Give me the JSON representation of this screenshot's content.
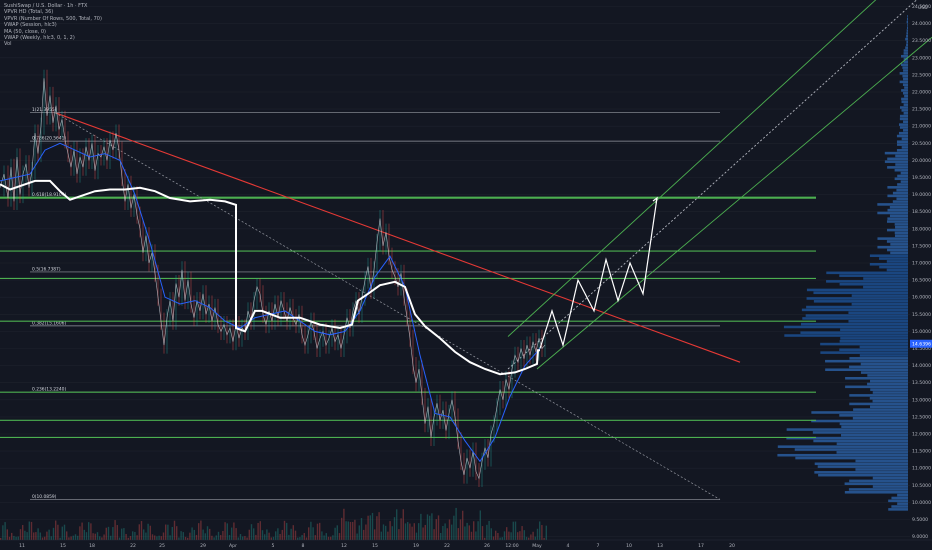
{
  "legend": [
    "SushiSwap / U.S. Dollar · 1h · FTX",
    "VPVR HD (Total, 36)",
    "VPVR (Number Of Rows, 500, Total, 70)",
    "VWAP (Session, hlc3)",
    "MA (50, close, 0)",
    "VWAP (Weekly, hlc3, 0, 1, 2)",
    "Vol"
  ],
  "axis": {
    "currency": "USD",
    "price_ticks": [
      "24.5000",
      "24.0000",
      "23.5000",
      "23.0000",
      "22.5000",
      "22.0000",
      "21.5000",
      "21.0000",
      "20.5000",
      "20.0000",
      "19.5000",
      "19.0000",
      "18.5000",
      "18.0000",
      "17.5000",
      "17.0000",
      "16.5000",
      "16.0000",
      "15.5000",
      "15.0000",
      "14.5000",
      "14.0000",
      "13.5000",
      "13.0000",
      "12.5000",
      "12.0000",
      "11.5000",
      "11.0000",
      "10.5000",
      "10.0000",
      "9.5000",
      "9.0000"
    ],
    "current_price": "14.6396",
    "time_ticks": [
      "11",
      "15",
      "18",
      "22",
      "25",
      "29",
      "Apr",
      "5",
      "8",
      "12",
      "15",
      "19",
      "22",
      "26",
      "12:00",
      "May",
      "4",
      "7",
      "10",
      "13",
      "17",
      "20"
    ]
  },
  "fib_levels": [
    {
      "label": "1(21.3955)",
      "price": 21.3955
    },
    {
      "label": "0.786(20.5641)",
      "price": 20.5641
    },
    {
      "label": "0.618(18.9104)",
      "price": 18.9104
    },
    {
      "label": "0.5(16.7387)",
      "price": 16.7387
    },
    {
      "label": "0.382(15.1606)",
      "price": 15.1606
    },
    {
      "label": "0.236(13.2240)",
      "price": 13.224
    },
    {
      "label": "0(10.0859)",
      "price": 10.0859
    }
  ],
  "colors": {
    "background": "#131722",
    "price": "#d1d4dc",
    "ma": "#2962ff",
    "vwap": "#ffffff",
    "fib_line": "#9598a1",
    "support": "#4caf50",
    "trendline": "#e53935",
    "channel": "#4caf50",
    "volume_profile": "#2962ff"
  },
  "chart_data": {
    "type": "line",
    "title": "SushiSwap / U.S. Dollar · 1h · FTX",
    "xlabel": "",
    "ylabel": "USD",
    "ylim": [
      9.0,
      24.5
    ],
    "price_path": [
      [
        0,
        19.2
      ],
      [
        4,
        19.6
      ],
      [
        8,
        18.9
      ],
      [
        11,
        19.8
      ],
      [
        14,
        18.8
      ],
      [
        17,
        20.1
      ],
      [
        20,
        19.0
      ],
      [
        23,
        19.6
      ],
      [
        26,
        19.9
      ],
      [
        29,
        19.2
      ],
      [
        32,
        19.7
      ],
      [
        35,
        20.8
      ],
      [
        38,
        20.2
      ],
      [
        41,
        21.0
      ],
      [
        44,
        22.4
      ],
      [
        47,
        21.3
      ],
      [
        50,
        21.9
      ],
      [
        53,
        21.1
      ],
      [
        56,
        21.6
      ],
      [
        59,
        20.9
      ],
      [
        62,
        21.2
      ],
      [
        65,
        20.6
      ],
      [
        68,
        20.2
      ],
      [
        71,
        19.8
      ],
      [
        74,
        20.3
      ],
      [
        77,
        19.6
      ],
      [
        80,
        20.1
      ],
      [
        83,
        19.8
      ],
      [
        86,
        20.4
      ],
      [
        89,
        20.0
      ],
      [
        92,
        20.5
      ],
      [
        95,
        19.7
      ],
      [
        98,
        20.2
      ],
      [
        101,
        20.1
      ],
      [
        104,
        20.4
      ],
      [
        107,
        20.0
      ],
      [
        110,
        20.6
      ],
      [
        113,
        20.3
      ],
      [
        116,
        20.8
      ],
      [
        119,
        20.3
      ],
      [
        122,
        19.5
      ],
      [
        125,
        18.8
      ],
      [
        128,
        19.3
      ],
      [
        131,
        18.6
      ],
      [
        134,
        19.0
      ],
      [
        137,
        18.4
      ],
      [
        140,
        18.0
      ],
      [
        143,
        17.3
      ],
      [
        146,
        17.8
      ],
      [
        149,
        17.0
      ],
      [
        152,
        17.3
      ],
      [
        155,
        16.7
      ],
      [
        158,
        16.0
      ],
      [
        161,
        15.3
      ],
      [
        164,
        14.6
      ],
      [
        167,
        15.4
      ],
      [
        170,
        15.9
      ],
      [
        173,
        15.3
      ],
      [
        176,
        16.4
      ],
      [
        179,
        16.0
      ],
      [
        182,
        16.8
      ],
      [
        185,
        15.9
      ],
      [
        188,
        16.5
      ],
      [
        191,
        15.8
      ],
      [
        194,
        15.4
      ],
      [
        197,
        15.9
      ],
      [
        200,
        15.6
      ],
      [
        203,
        16.1
      ],
      [
        206,
        15.5
      ],
      [
        209,
        15.8
      ],
      [
        212,
        15.3
      ],
      [
        215,
        15.7
      ],
      [
        218,
        15.2
      ],
      [
        221,
        15.0
      ],
      [
        224,
        15.2
      ],
      [
        227,
        14.9
      ],
      [
        230,
        15.1
      ],
      [
        233,
        14.7
      ],
      [
        236,
        15.2
      ],
      [
        239,
        14.8
      ],
      [
        242,
        15.1
      ],
      [
        245,
        15.0
      ],
      [
        248,
        15.6
      ],
      [
        251,
        15.3
      ],
      [
        254,
        15.9
      ],
      [
        257,
        16.3
      ],
      [
        260,
        16.1
      ],
      [
        263,
        15.5
      ],
      [
        266,
        15.2
      ],
      [
        269,
        15.6
      ],
      [
        272,
        15.3
      ],
      [
        275,
        15.8
      ],
      [
        278,
        15.4
      ],
      [
        281,
        15.9
      ],
      [
        284,
        15.6
      ],
      [
        287,
        15.3
      ],
      [
        290,
        15.7
      ],
      [
        293,
        15.4
      ],
      [
        296,
        15.2
      ],
      [
        299,
        15.5
      ],
      [
        302,
        14.9
      ],
      [
        305,
        14.6
      ],
      [
        308,
        14.9
      ],
      [
        311,
        15.3
      ],
      [
        314,
        15.0
      ],
      [
        317,
        14.5
      ],
      [
        320,
        14.8
      ],
      [
        323,
        15.0
      ],
      [
        326,
        14.6
      ],
      [
        329,
        14.8
      ],
      [
        332,
        15.1
      ],
      [
        335,
        14.7
      ],
      [
        338,
        14.9
      ],
      [
        341,
        14.5
      ],
      [
        344,
        14.9
      ],
      [
        347,
        15.4
      ],
      [
        350,
        15.1
      ],
      [
        353,
        15.6
      ],
      [
        356,
        15.9
      ],
      [
        359,
        15.5
      ],
      [
        362,
        16.0
      ],
      [
        365,
        16.5
      ],
      [
        368,
        16.9
      ],
      [
        371,
        16.2
      ],
      [
        374,
        16.8
      ],
      [
        377,
        17.6
      ],
      [
        380,
        18.3
      ],
      [
        383,
        17.5
      ],
      [
        386,
        17.9
      ],
      [
        389,
        17.2
      ],
      [
        392,
        16.8
      ],
      [
        395,
        16.6
      ],
      [
        398,
        16.3
      ],
      [
        401,
        16.7
      ],
      [
        404,
        16.0
      ],
      [
        407,
        15.4
      ],
      [
        410,
        14.8
      ],
      [
        413,
        14.0
      ],
      [
        416,
        13.5
      ],
      [
        419,
        13.9
      ],
      [
        422,
        13.1
      ],
      [
        425,
        12.3
      ],
      [
        428,
        12.8
      ],
      [
        431,
        11.9
      ],
      [
        434,
        12.5
      ],
      [
        437,
        12.9
      ],
      [
        440,
        12.4
      ],
      [
        443,
        12.7
      ],
      [
        446,
        12.1
      ],
      [
        449,
        12.6
      ],
      [
        452,
        13.0
      ],
      [
        455,
        12.5
      ],
      [
        458,
        11.8
      ],
      [
        461,
        11.2
      ],
      [
        464,
        10.8
      ],
      [
        467,
        11.3
      ],
      [
        470,
        11.0
      ],
      [
        473,
        11.5
      ],
      [
        476,
        10.9
      ],
      [
        479,
        10.7
      ],
      [
        482,
        11.2
      ],
      [
        485,
        11.6
      ],
      [
        488,
        11.3
      ],
      [
        491,
        12.0
      ],
      [
        494,
        12.3
      ],
      [
        497,
        12.8
      ],
      [
        500,
        13.3
      ],
      [
        503,
        13.0
      ],
      [
        506,
        13.6
      ],
      [
        509,
        13.3
      ],
      [
        512,
        13.9
      ],
      [
        515,
        14.3
      ],
      [
        518,
        14.1
      ],
      [
        521,
        14.5
      ],
      [
        524,
        14.2
      ],
      [
        527,
        14.6
      ],
      [
        530,
        14.3
      ],
      [
        533,
        14.7
      ],
      [
        536,
        14.4
      ],
      [
        539,
        14.8
      ],
      [
        542,
        14.5
      ],
      [
        545,
        14.6
      ]
    ],
    "vwap_path": [
      [
        0,
        19.3
      ],
      [
        10,
        19.15
      ],
      [
        20,
        19.25
      ],
      [
        35,
        19.4
      ],
      [
        50,
        19.4
      ],
      [
        60,
        19.1
      ],
      [
        70,
        18.85
      ],
      [
        80,
        18.95
      ],
      [
        95,
        19.1
      ],
      [
        110,
        19.15
      ],
      [
        125,
        19.15
      ],
      [
        140,
        19.2
      ],
      [
        155,
        19.1
      ],
      [
        170,
        18.9
      ],
      [
        190,
        18.8
      ],
      [
        210,
        18.85
      ],
      [
        225,
        18.8
      ],
      [
        236,
        18.7
      ],
      [
        236,
        15.1
      ],
      [
        245,
        15.0
      ],
      [
        255,
        15.6
      ],
      [
        262,
        15.6
      ],
      [
        280,
        15.4
      ],
      [
        300,
        15.4
      ],
      [
        320,
        15.2
      ],
      [
        340,
        15.1
      ],
      [
        352,
        15.2
      ],
      [
        358,
        15.9
      ],
      [
        368,
        16.1
      ],
      [
        380,
        16.35
      ],
      [
        395,
        16.45
      ],
      [
        405,
        16.3
      ],
      [
        415,
        15.5
      ],
      [
        425,
        15.15
      ],
      [
        440,
        14.8
      ],
      [
        455,
        14.4
      ],
      [
        470,
        14.1
      ],
      [
        485,
        13.9
      ],
      [
        500,
        13.75
      ],
      [
        515,
        13.8
      ],
      [
        525,
        13.9
      ],
      [
        537,
        14.05
      ],
      [
        538,
        14.45
      ],
      [
        540,
        14.45
      ]
    ],
    "ma_path": [
      [
        0,
        19.4
      ],
      [
        15,
        19.5
      ],
      [
        30,
        19.6
      ],
      [
        45,
        20.3
      ],
      [
        60,
        20.5
      ],
      [
        75,
        20.3
      ],
      [
        90,
        20.1
      ],
      [
        105,
        20.2
      ],
      [
        120,
        20.0
      ],
      [
        135,
        19.0
      ],
      [
        150,
        17.6
      ],
      [
        165,
        16.0
      ],
      [
        180,
        15.8
      ],
      [
        195,
        15.9
      ],
      [
        210,
        15.7
      ],
      [
        225,
        15.3
      ],
      [
        240,
        15.1
      ],
      [
        255,
        15.4
      ],
      [
        270,
        15.5
      ],
      [
        285,
        15.6
      ],
      [
        300,
        15.3
      ],
      [
        315,
        15.0
      ],
      [
        330,
        14.9
      ],
      [
        345,
        15.0
      ],
      [
        360,
        15.6
      ],
      [
        375,
        16.6
      ],
      [
        390,
        17.2
      ],
      [
        405,
        16.3
      ],
      [
        420,
        14.3
      ],
      [
        435,
        12.6
      ],
      [
        450,
        12.5
      ],
      [
        465,
        11.8
      ],
      [
        480,
        11.2
      ],
      [
        495,
        11.9
      ],
      [
        510,
        13.1
      ],
      [
        525,
        14.0
      ],
      [
        540,
        14.5
      ]
    ],
    "projection_path": [
      [
        540,
        14.5
      ],
      [
        552,
        15.6
      ],
      [
        563,
        14.6
      ],
      [
        578,
        16.5
      ],
      [
        594,
        15.6
      ],
      [
        606,
        17.1
      ],
      [
        618,
        15.9
      ],
      [
        630,
        17.0
      ],
      [
        643,
        16.1
      ],
      [
        657,
        18.9
      ]
    ],
    "support_levels": [
      18.9104,
      17.35,
      16.55,
      15.3,
      13.224,
      12.4,
      11.9
    ],
    "trendline": {
      "from": [
        55,
        21.3955
      ],
      "to": [
        740,
        14.1
      ]
    },
    "diagonal": {
      "from": [
        55,
        21.3955
      ],
      "to": [
        720,
        10.0859
      ]
    },
    "channel": [
      {
        "from": [
          508,
          14.85
        ],
        "to": [
          932,
          26.2
        ]
      },
      {
        "from": [
          508,
          13.9
        ],
        "to": [
          932,
          25.1
        ]
      },
      {
        "from": [
          537,
          13.9
        ],
        "to": [
          932,
          23.6
        ]
      }
    ],
    "volume_profile": [
      [
        24.0,
        0.01
      ],
      [
        23.5,
        0.02
      ],
      [
        23.0,
        0.05
      ],
      [
        22.5,
        0.06
      ],
      [
        22.0,
        0.05
      ],
      [
        21.5,
        0.06
      ],
      [
        21.0,
        0.07
      ],
      [
        20.5,
        0.09
      ],
      [
        20.0,
        0.18
      ],
      [
        19.5,
        0.1
      ],
      [
        19.0,
        0.15
      ],
      [
        18.5,
        0.22
      ],
      [
        18.0,
        0.15
      ],
      [
        17.5,
        0.22
      ],
      [
        17.0,
        0.28
      ],
      [
        16.5,
        0.62
      ],
      [
        16.0,
        0.8
      ],
      [
        15.5,
        0.85
      ],
      [
        15.0,
        0.95
      ],
      [
        14.5,
        0.65
      ],
      [
        14.0,
        0.6
      ],
      [
        13.5,
        0.45
      ],
      [
        13.0,
        0.42
      ],
      [
        12.5,
        0.7
      ],
      [
        12.0,
        0.9
      ],
      [
        11.5,
        1.0
      ],
      [
        11.0,
        0.75
      ],
      [
        10.5,
        0.5
      ],
      [
        10.0,
        0.15
      ]
    ]
  }
}
